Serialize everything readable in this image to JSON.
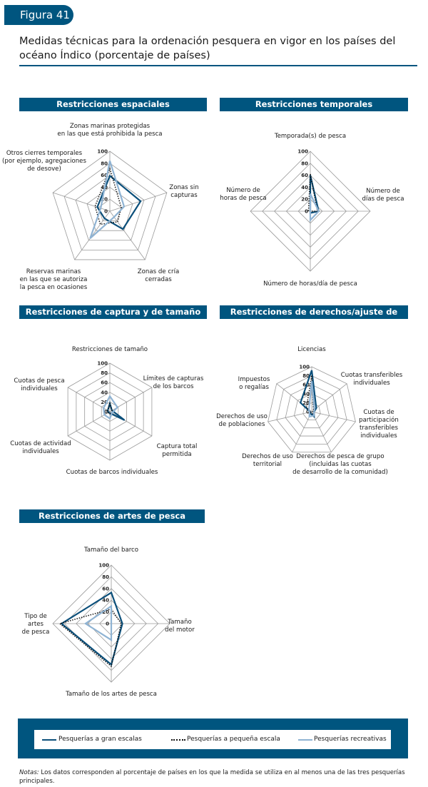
{
  "figure_label": "Figura 41",
  "title": "Medidas técnicas para la ordenación pesquera en vigor en los países del océano Índico (porcentaje de países)",
  "colors": {
    "accent": "#00557f",
    "gran_escala": "#0b4f7a",
    "pequena_escala": "#111111",
    "recreativas": "#8fb3d3"
  },
  "legend": {
    "gran": "Pesquerías a gran escalas",
    "pequena": "Pesquerías a pequeña escala",
    "recreativas": "Pesquerías recreativas"
  },
  "notes": {
    "prefix": "Notas:",
    "text": " Los datos corresponden al porcentaje de países en los que la medida se utiliza en al menos una de las tres pesquerías principales."
  },
  "ticks": [
    "0",
    "20",
    "40",
    "60",
    "80",
    "100"
  ],
  "chart_data": [
    {
      "type": "radar",
      "title": "Restricciones espaciales",
      "axes": [
        "Zonas marinas protegidas\nen las que está prohibida la pesca",
        "Zonas sin\ncapturas",
        "Zonas de cría\ncerradas",
        "Reservas marinas\nen las que se autoriza\nla pesca en ocasiones",
        "Otros cierres temporales\n(por ejemplo, agregaciones\nde desove)"
      ],
      "ylim": [
        0,
        100
      ],
      "series": [
        {
          "name": "Pesquerías a gran escalas",
          "values": [
            59,
            54,
            37,
            15,
            22
          ]
        },
        {
          "name": "Pesquerías a pequeña escala",
          "values": [
            71,
            20,
            22,
            27,
            26
          ]
        },
        {
          "name": "Pesquerías recreativas",
          "values": [
            84,
            25,
            12,
            56,
            16
          ]
        }
      ]
    },
    {
      "type": "radar",
      "title": "Restricciones temporales",
      "axes": [
        "Temporada(s) de pesca",
        "Número de\ndías de pesca",
        "Número de horas/día de pesca",
        "Número de\nhoras de pesca"
      ],
      "ylim": [
        0,
        100
      ],
      "series": [
        {
          "name": "Pesquerías a gran escalas",
          "values": [
            60,
            14,
            3,
            0
          ]
        },
        {
          "name": "Pesquerías a pequeña escala",
          "values": [
            62,
            12,
            0,
            3
          ]
        },
        {
          "name": "Pesquerías recreativas",
          "values": [
            29,
            14,
            15,
            0
          ]
        }
      ]
    },
    {
      "type": "radar",
      "title": "Restricciones de captura y de tamaño",
      "axes": [
        "Restricciones de tamaño",
        "Límites de capturas\nde los barcos",
        "Captura total\npermitida",
        "Cuotas de barcos individuales",
        "Cuotas de actividad\nindividuales",
        "Cuotas de pesca\nindividuales"
      ],
      "ylim": [
        0,
        100
      ],
      "series": [
        {
          "name": "Pesquerías a gran escalas",
          "values": [
            17,
            5,
            35,
            3,
            3,
            5
          ]
        },
        {
          "name": "Pesquerías a pequeña escala",
          "values": [
            18,
            5,
            5,
            5,
            4,
            5
          ]
        },
        {
          "name": "Pesquerías recreativas",
          "values": [
            32,
            18,
            5,
            14,
            13,
            15
          ]
        }
      ]
    },
    {
      "type": "radar",
      "title": "Restricciones de derechos/ajuste de incentivos",
      "axes": [
        "Licencias",
        "Cuotas transferibles\nindividuales",
        "Cuotas de\nparticipación\ntransferibles\nindividuales",
        "Derechos de pesca de grupo\n(incluidas las cuotas\nde desarrollo de la comunidad)",
        "Derechos de uso\nterritorial",
        "Derechos de uso\nde poblaciones",
        "Impuestos\no regalías"
      ],
      "ylim": [
        0,
        100
      ],
      "series": [
        {
          "name": "Pesquerías a gran escalas",
          "values": [
            92,
            13,
            5,
            12,
            5,
            3,
            32
          ]
        },
        {
          "name": "Pesquerías a pequeña escala",
          "values": [
            80,
            5,
            3,
            5,
            3,
            3,
            15
          ]
        },
        {
          "name": "Pesquerías recreativas",
          "values": [
            68,
            8,
            5,
            10,
            12,
            5,
            8
          ]
        }
      ]
    },
    {
      "type": "radar",
      "title": "Restricciones de artes de pesca",
      "axes": [
        "Tamaño del barco",
        "Tamaño\ndel motor",
        "Tamaño de los artes de pesca",
        "Tipo de\nartes\nde pesca"
      ],
      "ylim": [
        0,
        100
      ],
      "series": [
        {
          "name": "Pesquerías a gran escalas",
          "values": [
            53,
            19,
            70,
            85
          ]
        },
        {
          "name": "Pesquerías a pequeña escala",
          "values": [
            25,
            17,
            73,
            88
          ]
        },
        {
          "name": "Pesquerías recreativas",
          "values": [
            30,
            0,
            28,
            44
          ]
        }
      ]
    }
  ]
}
